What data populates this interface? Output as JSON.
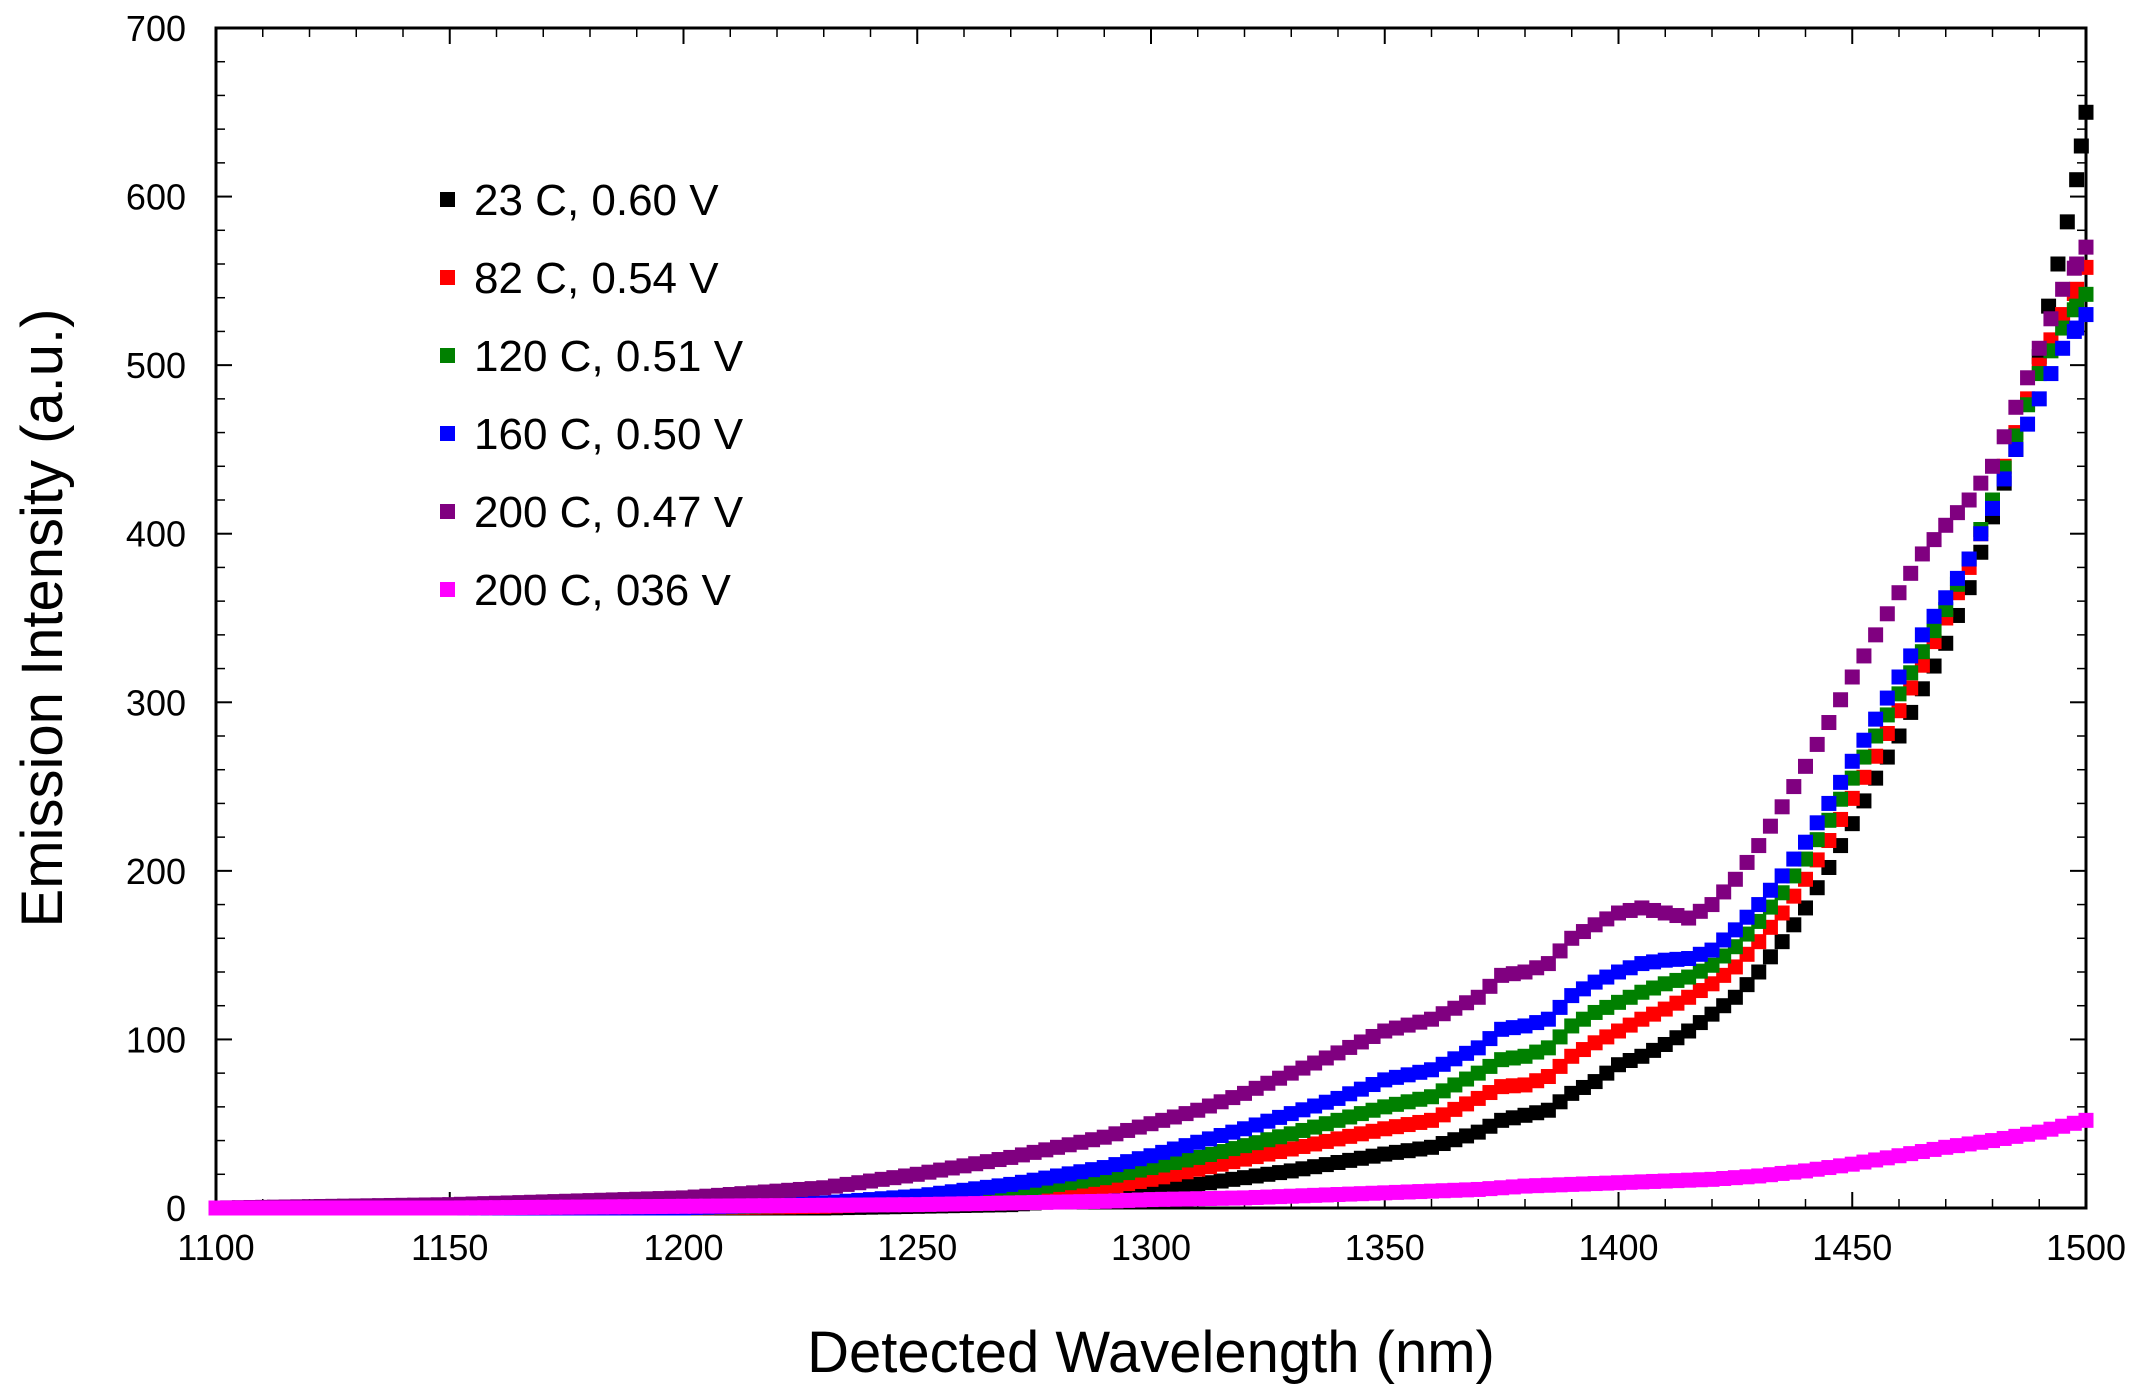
{
  "chart_data": {
    "type": "scatter",
    "title": "",
    "xlabel": "Detected Wavelength (nm)",
    "ylabel": "Emission Intensity (a.u.)",
    "xlim": [
      1100,
      1500
    ],
    "ylim": [
      0,
      700
    ],
    "xticks": [
      1100,
      1150,
      1200,
      1250,
      1300,
      1350,
      1400,
      1450,
      1500
    ],
    "yticks": [
      0,
      100,
      200,
      300,
      400,
      500,
      600,
      700
    ],
    "grid": false,
    "legend_position": "top-left",
    "series": [
      {
        "name": "23 C, 0.60 V",
        "color": "#000000",
        "points": [
          [
            1100,
            0
          ],
          [
            1150,
            0
          ],
          [
            1200,
            0
          ],
          [
            1230,
            0
          ],
          [
            1250,
            1
          ],
          [
            1270,
            2
          ],
          [
            1290,
            6
          ],
          [
            1300,
            10
          ],
          [
            1310,
            14
          ],
          [
            1320,
            18
          ],
          [
            1330,
            22
          ],
          [
            1340,
            27
          ],
          [
            1350,
            32
          ],
          [
            1360,
            36
          ],
          [
            1370,
            45
          ],
          [
            1375,
            52
          ],
          [
            1380,
            55
          ],
          [
            1385,
            58
          ],
          [
            1390,
            68
          ],
          [
            1395,
            75
          ],
          [
            1400,
            85
          ],
          [
            1405,
            90
          ],
          [
            1410,
            97
          ],
          [
            1415,
            105
          ],
          [
            1420,
            115
          ],
          [
            1425,
            125
          ],
          [
            1430,
            140
          ],
          [
            1435,
            158
          ],
          [
            1440,
            178
          ],
          [
            1445,
            202
          ],
          [
            1450,
            228
          ],
          [
            1455,
            255
          ],
          [
            1460,
            280
          ],
          [
            1465,
            308
          ],
          [
            1470,
            335
          ],
          [
            1475,
            368
          ],
          [
            1480,
            410
          ],
          [
            1485,
            450
          ],
          [
            1490,
            505
          ],
          [
            1492,
            535
          ],
          [
            1494,
            560
          ],
          [
            1496,
            585
          ],
          [
            1498,
            610
          ],
          [
            1499,
            630
          ],
          [
            1500,
            650
          ]
        ]
      },
      {
        "name": "82 C, 0.54 V",
        "color": "#ff0000",
        "points": [
          [
            1100,
            0
          ],
          [
            1150,
            0
          ],
          [
            1200,
            0
          ],
          [
            1230,
            1
          ],
          [
            1250,
            3
          ],
          [
            1270,
            6
          ],
          [
            1290,
            12
          ],
          [
            1300,
            17
          ],
          [
            1310,
            23
          ],
          [
            1320,
            29
          ],
          [
            1330,
            35
          ],
          [
            1340,
            41
          ],
          [
            1350,
            47
          ],
          [
            1360,
            52
          ],
          [
            1370,
            65
          ],
          [
            1375,
            72
          ],
          [
            1380,
            73
          ],
          [
            1385,
            78
          ],
          [
            1390,
            90
          ],
          [
            1395,
            98
          ],
          [
            1400,
            105
          ],
          [
            1405,
            112
          ],
          [
            1410,
            118
          ],
          [
            1415,
            125
          ],
          [
            1420,
            133
          ],
          [
            1425,
            143
          ],
          [
            1430,
            158
          ],
          [
            1435,
            175
          ],
          [
            1440,
            195
          ],
          [
            1445,
            218
          ],
          [
            1450,
            243
          ],
          [
            1455,
            268
          ],
          [
            1460,
            295
          ],
          [
            1465,
            322
          ],
          [
            1470,
            350
          ],
          [
            1475,
            380
          ],
          [
            1480,
            420
          ],
          [
            1485,
            460
          ],
          [
            1490,
            500
          ],
          [
            1495,
            530
          ],
          [
            1498,
            545
          ],
          [
            1500,
            558
          ]
        ]
      },
      {
        "name": "120 C, 0.51 V",
        "color": "#008000",
        "points": [
          [
            1100,
            0
          ],
          [
            1150,
            0
          ],
          [
            1200,
            0
          ],
          [
            1230,
            2
          ],
          [
            1250,
            5
          ],
          [
            1270,
            10
          ],
          [
            1290,
            18
          ],
          [
            1300,
            24
          ],
          [
            1310,
            30
          ],
          [
            1320,
            37
          ],
          [
            1330,
            44
          ],
          [
            1340,
            52
          ],
          [
            1350,
            60
          ],
          [
            1360,
            66
          ],
          [
            1370,
            80
          ],
          [
            1375,
            88
          ],
          [
            1380,
            90
          ],
          [
            1385,
            95
          ],
          [
            1390,
            108
          ],
          [
            1395,
            116
          ],
          [
            1400,
            122
          ],
          [
            1405,
            128
          ],
          [
            1410,
            133
          ],
          [
            1415,
            137
          ],
          [
            1420,
            144
          ],
          [
            1425,
            155
          ],
          [
            1430,
            170
          ],
          [
            1435,
            187
          ],
          [
            1440,
            207
          ],
          [
            1445,
            230
          ],
          [
            1450,
            255
          ],
          [
            1455,
            280
          ],
          [
            1460,
            305
          ],
          [
            1465,
            330
          ],
          [
            1470,
            355
          ],
          [
            1475,
            385
          ],
          [
            1480,
            420
          ],
          [
            1485,
            458
          ],
          [
            1490,
            495
          ],
          [
            1495,
            522
          ],
          [
            1498,
            535
          ],
          [
            1500,
            542
          ]
        ]
      },
      {
        "name": "160 C, 0.50 V",
        "color": "#0000ff",
        "points": [
          [
            1100,
            0
          ],
          [
            1150,
            0
          ],
          [
            1200,
            0
          ],
          [
            1230,
            3
          ],
          [
            1250,
            7
          ],
          [
            1270,
            14
          ],
          [
            1290,
            24
          ],
          [
            1300,
            31
          ],
          [
            1310,
            39
          ],
          [
            1320,
            47
          ],
          [
            1330,
            56
          ],
          [
            1340,
            65
          ],
          [
            1350,
            76
          ],
          [
            1360,
            82
          ],
          [
            1370,
            95
          ],
          [
            1375,
            106
          ],
          [
            1380,
            108
          ],
          [
            1385,
            112
          ],
          [
            1390,
            126
          ],
          [
            1395,
            134
          ],
          [
            1400,
            140
          ],
          [
            1405,
            145
          ],
          [
            1410,
            147
          ],
          [
            1415,
            148
          ],
          [
            1420,
            153
          ],
          [
            1425,
            165
          ],
          [
            1430,
            180
          ],
          [
            1435,
            197
          ],
          [
            1440,
            217
          ],
          [
            1445,
            240
          ],
          [
            1450,
            265
          ],
          [
            1455,
            290
          ],
          [
            1460,
            315
          ],
          [
            1465,
            340
          ],
          [
            1470,
            362
          ],
          [
            1475,
            385
          ],
          [
            1480,
            415
          ],
          [
            1485,
            450
          ],
          [
            1490,
            480
          ],
          [
            1495,
            510
          ],
          [
            1498,
            522
          ],
          [
            1500,
            530
          ]
        ]
      },
      {
        "name": "200 C, 0.47 V",
        "color": "#800080",
        "points": [
          [
            1100,
            0
          ],
          [
            1150,
            2
          ],
          [
            1200,
            6
          ],
          [
            1230,
            12
          ],
          [
            1250,
            20
          ],
          [
            1270,
            30
          ],
          [
            1290,
            42
          ],
          [
            1300,
            50
          ],
          [
            1310,
            58
          ],
          [
            1320,
            68
          ],
          [
            1330,
            80
          ],
          [
            1340,
            92
          ],
          [
            1350,
            105
          ],
          [
            1360,
            112
          ],
          [
            1370,
            125
          ],
          [
            1375,
            138
          ],
          [
            1380,
            140
          ],
          [
            1385,
            145
          ],
          [
            1390,
            160
          ],
          [
            1395,
            168
          ],
          [
            1400,
            175
          ],
          [
            1405,
            178
          ],
          [
            1410,
            175
          ],
          [
            1415,
            172
          ],
          [
            1420,
            180
          ],
          [
            1425,
            195
          ],
          [
            1430,
            215
          ],
          [
            1435,
            238
          ],
          [
            1440,
            262
          ],
          [
            1445,
            288
          ],
          [
            1450,
            315
          ],
          [
            1455,
            340
          ],
          [
            1460,
            365
          ],
          [
            1465,
            388
          ],
          [
            1470,
            405
          ],
          [
            1475,
            420
          ],
          [
            1480,
            440
          ],
          [
            1485,
            475
          ],
          [
            1490,
            510
          ],
          [
            1495,
            545
          ],
          [
            1498,
            560
          ],
          [
            1500,
            570
          ]
        ]
      },
      {
        "name": "200 C, 036 V",
        "color": "#ff00ff",
        "points": [
          [
            1100,
            0
          ],
          [
            1150,
            0
          ],
          [
            1200,
            1
          ],
          [
            1250,
            2
          ],
          [
            1270,
            3
          ],
          [
            1290,
            4
          ],
          [
            1300,
            5
          ],
          [
            1320,
            6
          ],
          [
            1340,
            8
          ],
          [
            1350,
            9
          ],
          [
            1360,
            10
          ],
          [
            1370,
            11
          ],
          [
            1380,
            13
          ],
          [
            1390,
            14
          ],
          [
            1400,
            15
          ],
          [
            1410,
            16
          ],
          [
            1420,
            17
          ],
          [
            1430,
            19
          ],
          [
            1440,
            22
          ],
          [
            1450,
            26
          ],
          [
            1460,
            31
          ],
          [
            1470,
            36
          ],
          [
            1480,
            40
          ],
          [
            1490,
            45
          ],
          [
            1500,
            52
          ]
        ]
      }
    ]
  }
}
